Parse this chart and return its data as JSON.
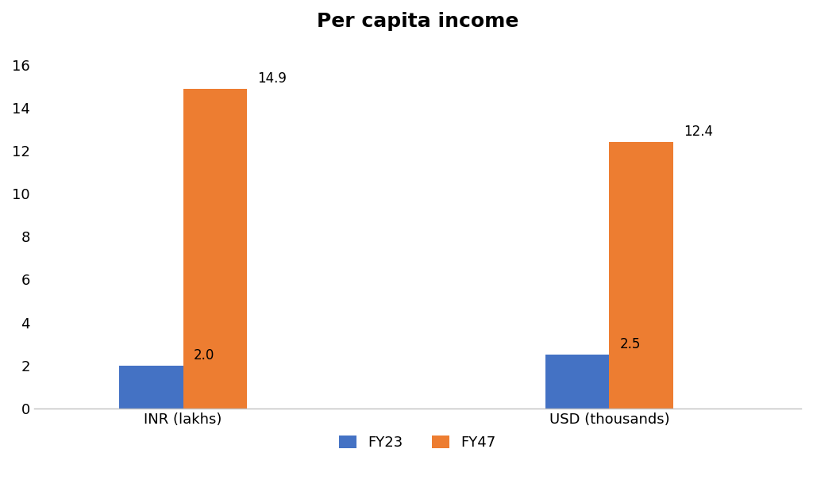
{
  "title": "Per capita income",
  "title_fontsize": 18,
  "title_fontweight": "bold",
  "categories": [
    "INR (lakhs)",
    "USD (thousands)"
  ],
  "fy23_values": [
    2.0,
    2.5
  ],
  "fy47_values": [
    14.9,
    12.4
  ],
  "fy23_color": "#4472C4",
  "fy47_color": "#ED7D31",
  "legend_labels": [
    "FY23",
    "FY47"
  ],
  "ylim": [
    0,
    17
  ],
  "yticks": [
    0,
    2,
    4,
    6,
    8,
    10,
    12,
    14,
    16
  ],
  "bar_width": 0.3,
  "tick_fontsize": 13,
  "legend_fontsize": 13,
  "background_color": "#ffffff",
  "annotation_fontsize": 12,
  "spine_color": "#c0c0c0"
}
